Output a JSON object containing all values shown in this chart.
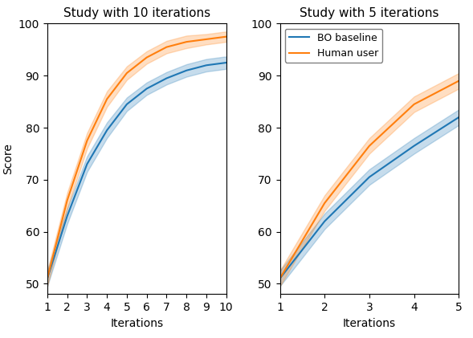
{
  "title_left": "Study with 10 iterations",
  "title_right": "Study with 5 iterations",
  "xlabel": "Iterations",
  "ylabel": "Score",
  "bo_color": "#1f77b4",
  "human_color": "#ff7f0e",
  "bo_alpha": 0.25,
  "human_alpha": 0.25,
  "legend_labels": [
    "BO baseline",
    "Human user"
  ],
  "left_x": [
    1,
    2,
    3,
    4,
    5,
    6,
    7,
    8,
    9,
    10
  ],
  "left_bo_mean": [
    51.0,
    63.0,
    73.0,
    79.5,
    84.5,
    87.5,
    89.5,
    91.0,
    92.0,
    92.5
  ],
  "left_bo_lower": [
    49.5,
    61.5,
    71.5,
    78.0,
    83.2,
    86.3,
    88.3,
    89.8,
    90.8,
    91.3
  ],
  "left_bo_upper": [
    52.5,
    64.5,
    74.5,
    81.0,
    85.8,
    88.7,
    90.7,
    92.2,
    93.2,
    93.7
  ],
  "left_human_mean": [
    51.0,
    66.0,
    77.5,
    85.5,
    90.5,
    93.5,
    95.5,
    96.5,
    97.0,
    97.5
  ],
  "left_human_lower": [
    49.5,
    64.5,
    76.0,
    84.0,
    89.2,
    92.3,
    94.3,
    95.3,
    96.0,
    96.5
  ],
  "left_human_upper": [
    52.5,
    67.5,
    79.0,
    87.0,
    91.8,
    94.7,
    96.7,
    97.7,
    98.0,
    98.5
  ],
  "right_x": [
    1,
    2,
    3,
    4,
    5
  ],
  "right_bo_mean": [
    51.0,
    62.0,
    70.5,
    76.5,
    82.0
  ],
  "right_bo_lower": [
    49.5,
    60.5,
    69.0,
    75.0,
    80.5
  ],
  "right_bo_upper": [
    52.5,
    63.5,
    72.0,
    78.0,
    83.5
  ],
  "right_human_mean": [
    51.0,
    65.5,
    76.5,
    84.5,
    89.0
  ],
  "right_human_lower": [
    49.5,
    64.0,
    75.0,
    83.0,
    87.5
  ],
  "right_human_upper": [
    52.5,
    67.0,
    78.0,
    86.0,
    90.5
  ],
  "ylim_left": [
    48,
    100
  ],
  "ylim_right": [
    48,
    100
  ],
  "yticks": [
    50,
    60,
    70,
    80,
    90,
    100
  ],
  "left_xticks": [
    1,
    2,
    3,
    4,
    5,
    6,
    7,
    8,
    9,
    10
  ],
  "right_xticks": [
    1,
    2,
    3,
    4,
    5
  ]
}
